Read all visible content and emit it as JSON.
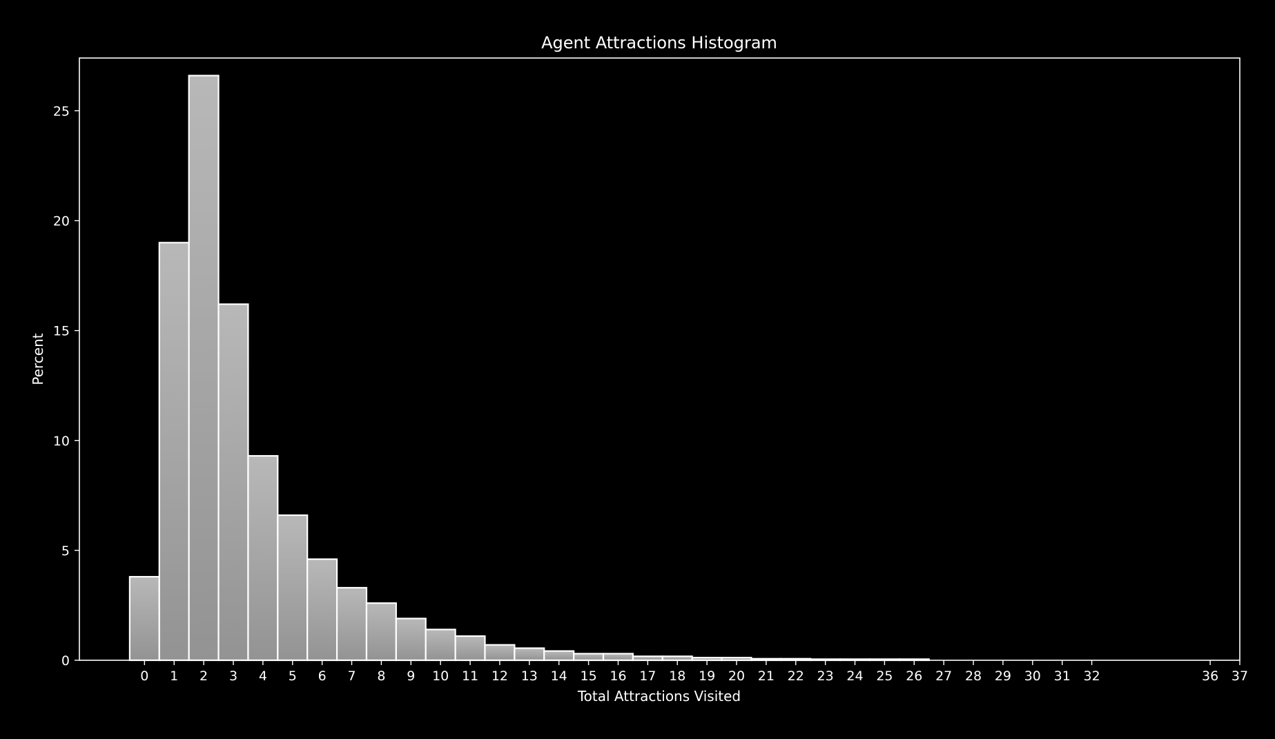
{
  "chart_data": {
    "type": "bar",
    "title": "Agent Attractions Histogram",
    "xlabel": "Total Attractions Visited",
    "ylabel": "Percent",
    "xlim": [
      -2.2,
      37
    ],
    "ylim": [
      0,
      27.4
    ],
    "x_ticks": [
      0,
      1,
      2,
      3,
      4,
      5,
      6,
      7,
      8,
      9,
      10,
      11,
      12,
      13,
      14,
      15,
      16,
      17,
      18,
      19,
      20,
      21,
      22,
      23,
      24,
      25,
      26,
      27,
      28,
      29,
      30,
      31,
      32,
      36,
      37
    ],
    "y_ticks": [
      0,
      5,
      10,
      15,
      20,
      25
    ],
    "categories": [
      0,
      1,
      2,
      3,
      4,
      5,
      6,
      7,
      8,
      9,
      10,
      11,
      12,
      13,
      14,
      15,
      16,
      17,
      18,
      19,
      20,
      21,
      22,
      23,
      24,
      25,
      26
    ],
    "values": [
      3.8,
      19.0,
      26.6,
      16.2,
      9.3,
      6.6,
      4.6,
      3.3,
      2.6,
      1.9,
      1.4,
      1.1,
      0.7,
      0.55,
      0.42,
      0.3,
      0.3,
      0.18,
      0.18,
      0.12,
      0.12,
      0.07,
      0.07,
      0.05,
      0.05,
      0.05,
      0.05
    ],
    "grid": false,
    "legend": "none",
    "colors": {
      "background": "#000000",
      "axes": "#ffffff",
      "bar_top": "#b8b8b8",
      "bar_bottom": "#939393",
      "bar_edge": "#ffffff"
    }
  }
}
